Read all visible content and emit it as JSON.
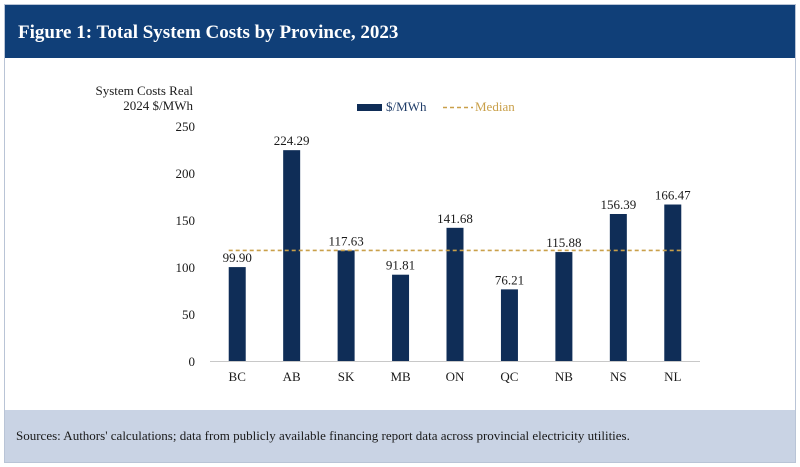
{
  "figure": {
    "title": "Figure 1: Total System Costs by Province, 2023",
    "source": "Sources: Authors' calculations; data from publicly available financing report data across provincial electricity utilities."
  },
  "colors": {
    "header_bg": "#103f78",
    "bar": "#0f2d57",
    "median": "#c9a04a",
    "footer_bg": "#c9d3e4"
  },
  "chart_data": {
    "type": "bar",
    "ylabel_lines": [
      "System Costs Real",
      "2024 $/MWh"
    ],
    "categories": [
      "BC",
      "AB",
      "SK",
      "MB",
      "ON",
      "QC",
      "NB",
      "NS",
      "NL"
    ],
    "series": [
      {
        "name": "$/MWh",
        "values": [
          99.9,
          224.29,
          117.63,
          91.81,
          141.68,
          76.21,
          115.88,
          156.39,
          166.47
        ],
        "labels": [
          "99.90",
          "224.29",
          "117.63",
          "91.81",
          "141.68",
          "76.21",
          "115.88",
          "156.39",
          "166.47"
        ]
      }
    ],
    "median": {
      "name": "Median",
      "value": 117.63
    },
    "ylim": [
      0,
      250
    ],
    "yticks": [
      0,
      50,
      100,
      150,
      200,
      250
    ],
    "legend_position": "top-center",
    "grid": false
  }
}
